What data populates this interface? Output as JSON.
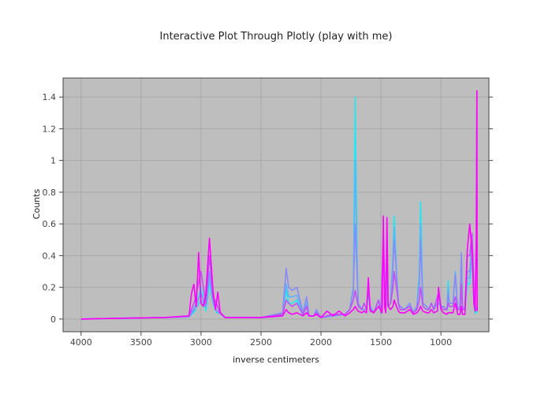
{
  "chart_data": {
    "type": "line",
    "title": "Interactive Plot Through Plotly (play with me)",
    "xlabel": "inverse centimeters",
    "ylabel": "Counts",
    "xlim": [
      4150,
      600
    ],
    "ylim": [
      -0.08,
      1.52
    ],
    "x_reversed": true,
    "grid": true,
    "legend": "none",
    "plot_background": "#bebebe",
    "x_ticks": [
      4000,
      3500,
      3000,
      2500,
      2000,
      1500,
      1000
    ],
    "x_tick_labels": [
      "4000",
      "3500",
      "3000",
      "2500",
      "2000",
      "1500",
      "1000"
    ],
    "y_ticks": [
      0,
      0.2,
      0.4,
      0.6,
      0.8,
      1,
      1.2,
      1.4
    ],
    "y_tick_labels": [
      "0",
      "0.2",
      "0.4",
      "0.6",
      "0.8",
      "1",
      "1.2",
      "1.4"
    ],
    "colorscale": [
      "#00ffff",
      "#ff00ff"
    ],
    "series": [
      {
        "color": "#22e8f4",
        "x": [
          4000,
          3700,
          3300,
          3100,
          3050,
          3000,
          2960,
          2930,
          2900,
          2870,
          2850,
          2800,
          2500,
          2320,
          2290,
          2270,
          2240,
          2200,
          2150,
          2120,
          2100,
          2060,
          2040,
          2000,
          1900,
          1800,
          1760,
          1730,
          1715,
          1700,
          1690,
          1660,
          1640,
          1620,
          1605,
          1590,
          1560,
          1520,
          1500,
          1480,
          1460,
          1450,
          1440,
          1420,
          1400,
          1390,
          1370,
          1355,
          1340,
          1300,
          1260,
          1230,
          1200,
          1180,
          1170,
          1150,
          1120,
          1100,
          1080,
          1060,
          1030,
          1020,
          1000,
          980,
          950,
          940,
          930,
          900,
          880,
          860,
          840,
          830,
          820,
          800,
          780,
          760,
          740,
          725,
          715,
          705,
          700
        ],
        "y": [
          0,
          0.005,
          0.01,
          0.015,
          0.05,
          0.2,
          0.05,
          0.22,
          0.1,
          0.04,
          0.04,
          0.01,
          0.01,
          0.02,
          0.18,
          0.1,
          0.1,
          0.12,
          0.02,
          0.12,
          0.02,
          0.02,
          0.05,
          0.01,
          0.02,
          0.03,
          0.06,
          0.2,
          1.4,
          0.45,
          0.1,
          0.06,
          0.06,
          0.06,
          0.18,
          0.08,
          0.04,
          0.12,
          0.04,
          0.4,
          0.06,
          0.4,
          0.08,
          0.1,
          0.4,
          0.65,
          0.3,
          0.1,
          0.08,
          0.06,
          0.1,
          0.04,
          0.08,
          0.3,
          0.74,
          0.1,
          0.08,
          0.06,
          0.1,
          0.06,
          0.1,
          0.1,
          0.08,
          0.08,
          0.06,
          0.24,
          0.1,
          0.1,
          0.3,
          0.06,
          0.08,
          0.36,
          0.08,
          0.06,
          0.22,
          0.22,
          0.4,
          0.1,
          0.04,
          0.04,
          0.06
        ]
      },
      {
        "color": "#5ab4f8",
        "x": [
          4000,
          3700,
          3300,
          3100,
          3050,
          3000,
          2960,
          2930,
          2900,
          2870,
          2850,
          2800,
          2500,
          2320,
          2290,
          2270,
          2240,
          2200,
          2150,
          2120,
          2100,
          2060,
          2040,
          2000,
          1900,
          1800,
          1760,
          1730,
          1715,
          1700,
          1690,
          1660,
          1640,
          1620,
          1605,
          1590,
          1560,
          1520,
          1500,
          1480,
          1460,
          1450,
          1440,
          1420,
          1400,
          1390,
          1370,
          1355,
          1340,
          1300,
          1260,
          1230,
          1200,
          1180,
          1170,
          1150,
          1120,
          1100,
          1080,
          1060,
          1030,
          1020,
          1000,
          980,
          950,
          940,
          930,
          900,
          880,
          860,
          840,
          830,
          820,
          800,
          780,
          760,
          740,
          725,
          715,
          705,
          700
        ],
        "y": [
          0,
          0.005,
          0.01,
          0.015,
          0.06,
          0.12,
          0.08,
          0.26,
          0.1,
          0.05,
          0.04,
          0.01,
          0.01,
          0.03,
          0.22,
          0.14,
          0.14,
          0.15,
          0.03,
          0.1,
          0.02,
          0.02,
          0.05,
          0.01,
          0.02,
          0.03,
          0.06,
          0.2,
          1.0,
          0.4,
          0.1,
          0.06,
          0.06,
          0.06,
          0.16,
          0.08,
          0.04,
          0.12,
          0.04,
          0.38,
          0.06,
          0.36,
          0.08,
          0.1,
          0.38,
          0.58,
          0.3,
          0.1,
          0.08,
          0.06,
          0.1,
          0.04,
          0.08,
          0.26,
          0.6,
          0.1,
          0.08,
          0.06,
          0.1,
          0.06,
          0.1,
          0.1,
          0.08,
          0.08,
          0.06,
          0.2,
          0.1,
          0.1,
          0.3,
          0.06,
          0.08,
          0.4,
          0.08,
          0.06,
          0.26,
          0.26,
          0.44,
          0.12,
          0.05,
          0.05,
          0.06
        ]
      },
      {
        "color": "#8c8af7",
        "x": [
          4000,
          3700,
          3300,
          3100,
          3050,
          3000,
          2960,
          2930,
          2900,
          2870,
          2850,
          2800,
          2500,
          2320,
          2290,
          2270,
          2240,
          2200,
          2150,
          2120,
          2100,
          2060,
          2040,
          2000,
          1900,
          1800,
          1760,
          1730,
          1715,
          1700,
          1690,
          1660,
          1640,
          1620,
          1605,
          1590,
          1560,
          1520,
          1500,
          1480,
          1460,
          1450,
          1440,
          1420,
          1400,
          1390,
          1370,
          1355,
          1340,
          1300,
          1260,
          1230,
          1200,
          1180,
          1170,
          1150,
          1120,
          1100,
          1080,
          1060,
          1030,
          1020,
          1000,
          980,
          950,
          940,
          930,
          900,
          880,
          860,
          840,
          830,
          820,
          800,
          780,
          760,
          740,
          725,
          715,
          705,
          700
        ],
        "y": [
          0,
          0.005,
          0.01,
          0.015,
          0.08,
          0.16,
          0.08,
          0.3,
          0.12,
          0.05,
          0.04,
          0.01,
          0.01,
          0.04,
          0.32,
          0.2,
          0.18,
          0.2,
          0.04,
          0.14,
          0.02,
          0.02,
          0.06,
          0.01,
          0.02,
          0.03,
          0.06,
          0.18,
          0.6,
          0.3,
          0.1,
          0.06,
          0.06,
          0.06,
          0.2,
          0.08,
          0.04,
          0.12,
          0.04,
          0.4,
          0.06,
          0.4,
          0.08,
          0.1,
          0.32,
          0.5,
          0.28,
          0.1,
          0.08,
          0.06,
          0.1,
          0.04,
          0.08,
          0.22,
          0.5,
          0.1,
          0.08,
          0.06,
          0.1,
          0.06,
          0.1,
          0.14,
          0.08,
          0.08,
          0.06,
          0.16,
          0.1,
          0.1,
          0.28,
          0.06,
          0.08,
          0.42,
          0.08,
          0.06,
          0.3,
          0.3,
          0.48,
          0.14,
          0.06,
          0.06,
          0.08
        ]
      },
      {
        "color": "#c04ef9",
        "x": [
          4000,
          3700,
          3300,
          3100,
          3050,
          3000,
          2960,
          2930,
          2900,
          2870,
          2850,
          2800,
          2500,
          2320,
          2290,
          2270,
          2240,
          2200,
          2150,
          2120,
          2100,
          2060,
          2040,
          2000,
          1900,
          1800,
          1760,
          1730,
          1715,
          1700,
          1690,
          1660,
          1640,
          1620,
          1605,
          1590,
          1560,
          1520,
          1500,
          1480,
          1460,
          1450,
          1440,
          1420,
          1400,
          1390,
          1370,
          1355,
          1340,
          1300,
          1260,
          1230,
          1200,
          1180,
          1170,
          1150,
          1120,
          1100,
          1080,
          1060,
          1030,
          1020,
          1000,
          980,
          950,
          940,
          930,
          900,
          880,
          860,
          840,
          830,
          820,
          800,
          780,
          760,
          740,
          725,
          715,
          705,
          700
        ],
        "y": [
          0,
          0.005,
          0.01,
          0.02,
          0.12,
          0.3,
          0.1,
          0.4,
          0.14,
          0.1,
          0.05,
          0.01,
          0.01,
          0.03,
          0.12,
          0.1,
          0.08,
          0.1,
          0.03,
          0.08,
          0.02,
          0.02,
          0.04,
          0.01,
          0.03,
          0.03,
          0.06,
          0.12,
          0.18,
          0.12,
          0.08,
          0.06,
          0.1,
          0.06,
          0.22,
          0.06,
          0.04,
          0.12,
          0.04,
          0.5,
          0.06,
          0.5,
          0.08,
          0.1,
          0.2,
          0.3,
          0.2,
          0.1,
          0.06,
          0.06,
          0.08,
          0.04,
          0.06,
          0.12,
          0.2,
          0.08,
          0.06,
          0.06,
          0.1,
          0.06,
          0.14,
          0.16,
          0.08,
          0.06,
          0.06,
          0.1,
          0.08,
          0.08,
          0.14,
          0.06,
          0.06,
          0.22,
          0.06,
          0.06,
          0.4,
          0.4,
          0.54,
          0.2,
          0.06,
          0.5,
          1.44
        ]
      },
      {
        "color": "#ff00ff",
        "x": [
          4000,
          3700,
          3300,
          3100,
          3080,
          3060,
          3040,
          3020,
          3000,
          2980,
          2960,
          2930,
          2900,
          2880,
          2860,
          2840,
          2800,
          2500,
          2320,
          2290,
          2270,
          2240,
          2200,
          2150,
          2120,
          2100,
          2060,
          2040,
          2000,
          1950,
          1900,
          1850,
          1800,
          1760,
          1730,
          1715,
          1700,
          1690,
          1660,
          1640,
          1620,
          1605,
          1590,
          1560,
          1520,
          1490,
          1480,
          1470,
          1460,
          1450,
          1440,
          1420,
          1400,
          1390,
          1370,
          1355,
          1340,
          1300,
          1260,
          1230,
          1200,
          1180,
          1170,
          1150,
          1120,
          1100,
          1080,
          1060,
          1030,
          1020,
          1000,
          980,
          950,
          940,
          930,
          900,
          880,
          860,
          840,
          830,
          820,
          800,
          780,
          760,
          740,
          725,
          715,
          705,
          700,
          698
        ],
        "y": [
          0,
          0.005,
          0.01,
          0.02,
          0.16,
          0.22,
          0.08,
          0.42,
          0.1,
          0.08,
          0.16,
          0.51,
          0.18,
          0.06,
          0.17,
          0.04,
          0.01,
          0.01,
          0.02,
          0.06,
          0.04,
          0.03,
          0.04,
          0.02,
          0.04,
          0.02,
          0.02,
          0.03,
          0.01,
          0.05,
          0.02,
          0.05,
          0.02,
          0.04,
          0.06,
          0.08,
          0.06,
          0.05,
          0.04,
          0.05,
          0.04,
          0.26,
          0.05,
          0.04,
          0.08,
          0.04,
          0.65,
          0.08,
          0.04,
          0.64,
          0.08,
          0.06,
          0.08,
          0.12,
          0.08,
          0.05,
          0.04,
          0.04,
          0.06,
          0.03,
          0.04,
          0.06,
          0.08,
          0.05,
          0.04,
          0.04,
          0.06,
          0.04,
          0.05,
          0.2,
          0.06,
          0.04,
          0.03,
          0.04,
          0.04,
          0.04,
          0.1,
          0.03,
          0.03,
          0.08,
          0.03,
          0.03,
          0.44,
          0.6,
          0.42,
          0.1,
          0.05,
          0.5,
          1.44,
          0.05
        ]
      }
    ]
  }
}
